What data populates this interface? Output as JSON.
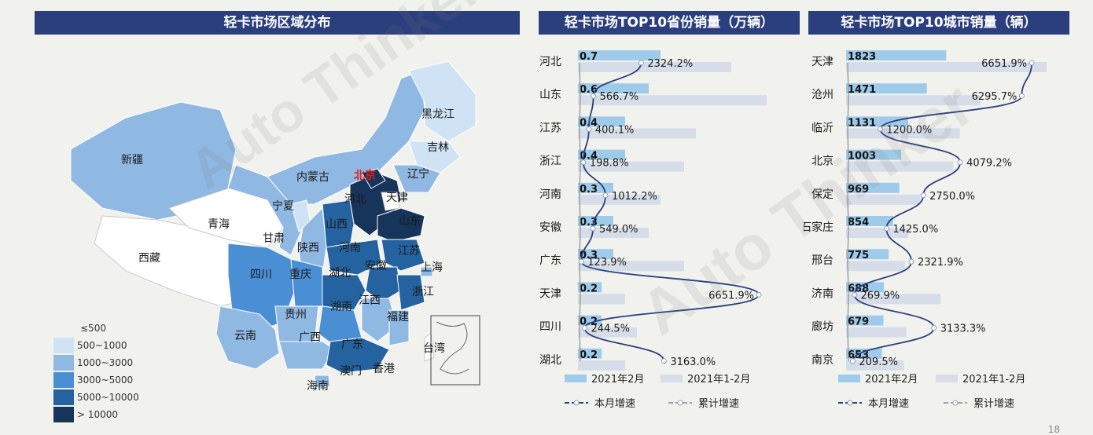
{
  "headers": {
    "map": "轻卡市场区域分布",
    "province": "轻卡市场TOP10省份销量（万辆）",
    "city": "轻卡市场TOP10城市销量（辆）"
  },
  "colors": {
    "header_bg": "#2b3f7e",
    "bar_month": "#9ecbe9",
    "bar_cum": "#d6dde8",
    "line_month": "#2b3f7e",
    "line_cum": "#9aa0a6",
    "map_le500": "#ffffff",
    "map_500_1000": "#cfe3f5",
    "map_1000_3000": "#8fb8e3",
    "map_3000_5000": "#4a8fd3",
    "map_5000_10000": "#24639f",
    "map_gt10000": "#17345a"
  },
  "map": {
    "legend": [
      "≤500",
      "500~1000",
      "1000~3000",
      "3000~5000",
      "5000~10000",
      "> 10000"
    ],
    "labels": [
      "新疆",
      "西藏",
      "青海",
      "甘肃",
      "宁夏",
      "内蒙古",
      "黑龙江",
      "吉林",
      "辽宁",
      "北京",
      "天津",
      "河北",
      "山西",
      "陕西",
      "四川",
      "重庆",
      "湖北",
      "河南",
      "山东",
      "江苏",
      "安徽",
      "上海",
      "浙江",
      "江西",
      "湖南",
      "贵州",
      "云南",
      "广西",
      "广东",
      "福建",
      "台湾",
      "香港",
      "澳门",
      "海南"
    ]
  },
  "chart_data": [
    {
      "type": "bar",
      "title": "轻卡市场TOP10省份销量（万辆）",
      "categories": [
        "河北",
        "山东",
        "江苏",
        "浙江",
        "河南",
        "安徽",
        "广东",
        "天津",
        "四川",
        "湖北"
      ],
      "series": [
        {
          "name": "2021年2月",
          "values": [
            0.7,
            0.6,
            0.4,
            0.4,
            0.3,
            0.3,
            0.3,
            0.2,
            0.2,
            0.2
          ]
        },
        {
          "name": "2021年1-2月",
          "values": [
            1.3,
            1.6,
            1.0,
            0.9,
            0.7,
            0.6,
            0.9,
            0.4,
            0.5,
            0.4
          ]
        },
        {
          "name": "本月增速",
          "values": [
            2324.2,
            566.7,
            400.1,
            198.8,
            1012.2,
            549.0,
            123.9,
            6651.9,
            244.5,
            3163.0
          ]
        },
        {
          "name": "累计增速",
          "values": [
            0,
            0,
            0,
            0,
            0,
            0,
            0,
            0,
            0,
            0
          ]
        }
      ],
      "value_labels": [
        "0.7",
        "0.6",
        "0.4",
        "0.4",
        "0.3",
        "0.3",
        "0.3",
        "0.2",
        "0.2",
        "0.2"
      ],
      "growth_labels": [
        "2324.2%",
        "566.7%",
        "400.1%",
        "198.8%",
        "1012.2%",
        "549.0%",
        "123.9%",
        "6651.9%",
        "244.5%",
        "3163.0%"
      ],
      "legend": [
        "2021年2月",
        "2021年1-2月",
        "本月增速",
        "累计增速"
      ]
    },
    {
      "type": "bar",
      "title": "轻卡市场TOP10城市销量（辆）",
      "categories": [
        "天津",
        "沧州",
        "临沂",
        "北京",
        "保定",
        "石家庄",
        "邢台",
        "济南",
        "廊坊",
        "南京"
      ],
      "series": [
        {
          "name": "2021年2月",
          "values": [
            1823,
            1471,
            1131,
            1003,
            969,
            854,
            775,
            688,
            679,
            653
          ]
        },
        {
          "name": "2021年1-2月",
          "values": [
            3650,
            2450,
            2070,
            1950,
            1350,
            1130,
            1070,
            1720,
            1100,
            1050
          ]
        },
        {
          "name": "本月增速",
          "values": [
            6651.9,
            6295.7,
            1200.0,
            4079.2,
            2750.0,
            1425.0,
            2321.9,
            269.9,
            3133.3,
            209.5
          ]
        },
        {
          "name": "累计增速",
          "values": [
            0,
            0,
            0,
            0,
            0,
            0,
            0,
            0,
            0,
            0
          ]
        }
      ],
      "value_labels": [
        "1823",
        "1471",
        "1131",
        "1003",
        "969",
        "854",
        "775",
        "688",
        "679",
        "653"
      ],
      "growth_labels": [
        "6651.9%",
        "6295.7%",
        "1200.0%",
        "4079.2%",
        "2750.0%",
        "1425.0%",
        "2321.9%",
        "269.9%",
        "3133.3%",
        "209.5%"
      ],
      "legend": [
        "2021年2月",
        "2021年1-2月",
        "本月增速",
        "累计增速"
      ]
    }
  ],
  "page_number": "18"
}
